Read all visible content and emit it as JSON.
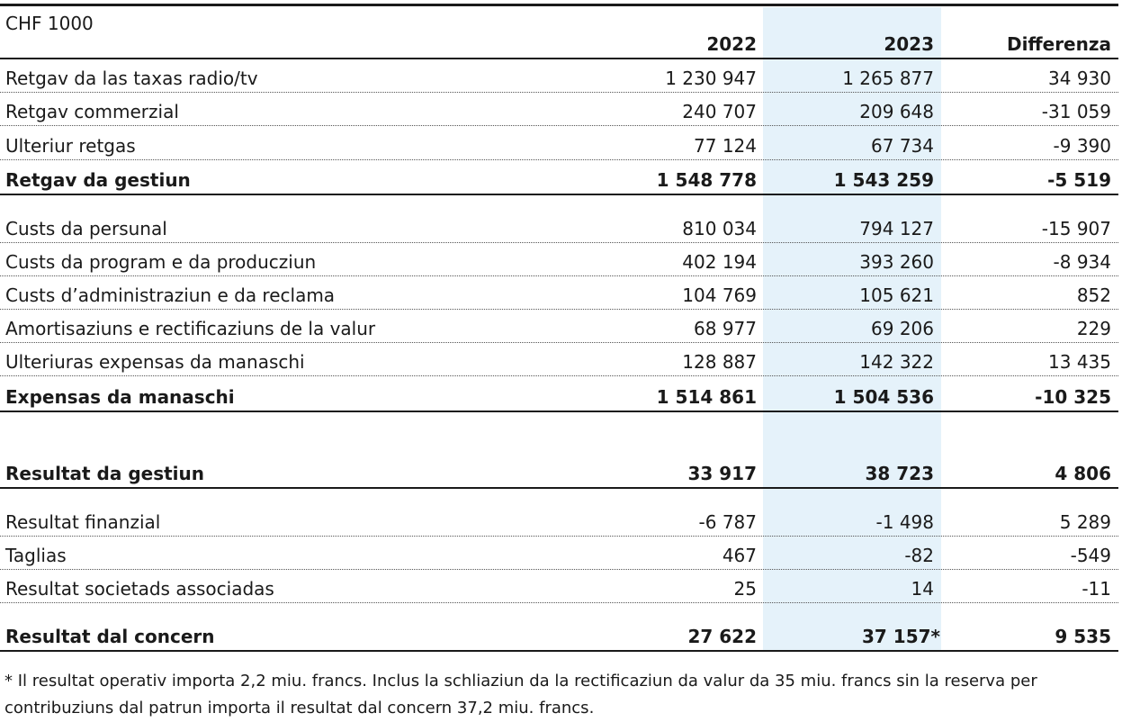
{
  "unit": "CHF 1000",
  "headers": {
    "y2022": "2022",
    "y2023": "2023",
    "diff": "Differenza"
  },
  "rows": [
    {
      "label": "Retgav da las taxas radio/tv",
      "y2022": "1 230 947",
      "y2023": "1 265 877",
      "diff": "34 930"
    },
    {
      "label": "Retgav commerzial",
      "y2022": "240 707",
      "y2023": "209 648",
      "diff": "-31 059"
    },
    {
      "label": "Ulteriur retgas",
      "y2022": "77 124",
      "y2023": "67 734",
      "diff": "-9 390"
    },
    {
      "label": "Retgav da gestiun",
      "y2022": "1 548 778",
      "y2023": "1 543 259",
      "diff": "-5 519"
    },
    {
      "label": "Custs da persunal",
      "y2022": "810 034",
      "y2023": "794 127",
      "diff": "-15 907"
    },
    {
      "label": "Custs da program e da producziun",
      "y2022": "402 194",
      "y2023": "393 260",
      "diff": "-8 934"
    },
    {
      "label": "Custs d’administraziun e da reclama",
      "y2022": "104 769",
      "y2023": "105 621",
      "diff": "852"
    },
    {
      "label": "Amortisaziuns e rectificaziuns de la valur",
      "y2022": "68 977",
      "y2023": "69 206",
      "diff": "229"
    },
    {
      "label": "Ulteriuras expensas da manaschi",
      "y2022": "128 887",
      "y2023": "142 322",
      "diff": "13 435"
    },
    {
      "label": "Expensas da manaschi",
      "y2022": "1 514 861",
      "y2023": "1 504 536",
      "diff": "-10 325"
    },
    {
      "label": "Resultat da gestiun",
      "y2022": "33 917",
      "y2023": "38 723",
      "diff": "4 806"
    },
    {
      "label": "Resultat finanzial",
      "y2022": "-6 787",
      "y2023": "-1 498",
      "diff": "5 289"
    },
    {
      "label": "Taglias",
      "y2022": "467",
      "y2023": "-82",
      "diff": "-549"
    },
    {
      "label": "Resultat societads associadas",
      "y2022": "25",
      "y2023": "14",
      "diff": "-11"
    },
    {
      "label": "Resultat dal concern",
      "y2022": "27 622",
      "y2023": "37 157*",
      "diff": "9 535"
    }
  ],
  "footnote": "* Il resultat operativ importa 2,2 miu. francs. Inclus la schliaziun da la rectificaziun da valur da 35 miu. francs sin la reserva per contribuziuns dal patrun importa il resultat dal concern 37,2 miu. francs."
}
